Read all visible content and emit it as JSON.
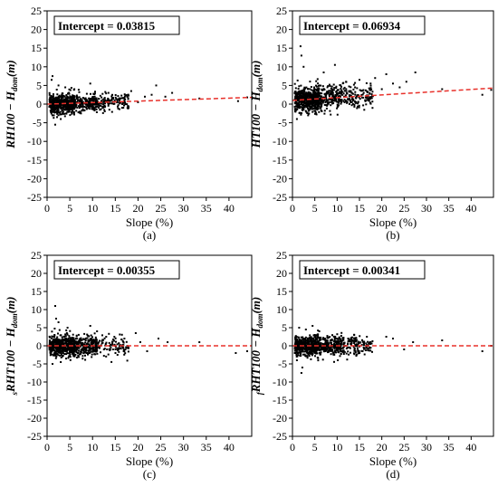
{
  "chart_data": [
    {
      "type": "scatter",
      "caption": "(a)",
      "annotation": "Intercept = 0.03815",
      "ylabel": {
        "prefix": "",
        "main": "RH100 − H",
        "sub": "dom",
        "suffix": "(m)"
      },
      "xlabel": "Slope (%)",
      "xlim": [
        0,
        45
      ],
      "ylim": [
        -25,
        25
      ],
      "xticks": [
        0,
        5,
        10,
        15,
        20,
        25,
        30,
        35,
        40
      ],
      "yticks": [
        -25,
        -20,
        -15,
        -10,
        -5,
        0,
        5,
        10,
        15,
        20,
        25
      ],
      "grid": false,
      "trend_line": {
        "style": "dashed",
        "color": "#e8302a",
        "x": [
          0,
          45
        ],
        "y": [
          0.0,
          1.8
        ]
      },
      "cloud": {
        "spread": 1.2,
        "slope": 0.04,
        "seed": 11
      },
      "series": [
        {
          "x": [
            1.0,
            1.2,
            2.5,
            4.0,
            1.5,
            1.8,
            3.0,
            6.0,
            9.5,
            2.2,
            17.0,
            18.5,
            20.0,
            21.5,
            23.0,
            24.0,
            26.0,
            27.5,
            33.5,
            42.0,
            44.0,
            13.5,
            16.5
          ],
          "y": [
            6.5,
            7.5,
            5.0,
            4.5,
            -3.0,
            -5.5,
            -4.0,
            4.0,
            5.5,
            -3.5,
            1.5,
            3.5,
            0.5,
            2.0,
            2.5,
            5.0,
            2.0,
            3.0,
            1.5,
            0.8,
            1.8,
            3.0,
            -1.0
          ]
        }
      ]
    },
    {
      "type": "scatter",
      "caption": "(b)",
      "annotation": "Intercept = 0.06934",
      "ylabel": {
        "prefix": "",
        "main": "HT100 − H",
        "sub": "dom",
        "suffix": "(m)"
      },
      "xlabel": "Slope (%)",
      "xlim": [
        0,
        45
      ],
      "ylim": [
        -25,
        25
      ],
      "xticks": [
        0,
        5,
        10,
        15,
        20,
        25,
        30,
        35,
        40
      ],
      "yticks": [
        -25,
        -20,
        -15,
        -10,
        -5,
        0,
        5,
        10,
        15,
        20,
        25
      ],
      "grid": false,
      "trend_line": {
        "style": "dashed",
        "color": "#e8302a",
        "x": [
          0,
          45
        ],
        "y": [
          1.0,
          4.3
        ]
      },
      "cloud": {
        "spread": 1.6,
        "slope": 0.07,
        "seed": 23
      },
      "series": [
        {
          "x": [
            1.8,
            2.0,
            2.5,
            9.5,
            7.0,
            1.0,
            3.5,
            15.0,
            17.5,
            18.5,
            20.0,
            21.0,
            22.5,
            24.0,
            25.5,
            27.5,
            33.5,
            42.5,
            44.5,
            12.0,
            14.0
          ],
          "y": [
            15.5,
            13.0,
            10.0,
            10.5,
            8.5,
            -4.0,
            -3.0,
            6.5,
            5.5,
            7.0,
            4.0,
            8.0,
            5.5,
            4.5,
            6.0,
            8.5,
            4.0,
            2.5,
            3.8,
            6.0,
            4.5
          ]
        }
      ]
    },
    {
      "type": "scatter",
      "caption": "(c)",
      "annotation": "Intercept = 0.00355",
      "ylabel": {
        "prefix": "s",
        "main": "RHT100 − H",
        "sub": "dom",
        "suffix": "(m)"
      },
      "xlabel": "Slope (%)",
      "xlim": [
        0,
        45
      ],
      "ylim": [
        -25,
        25
      ],
      "xticks": [
        0,
        5,
        10,
        15,
        20,
        25,
        30,
        35,
        40
      ],
      "yticks": [
        -25,
        -20,
        -15,
        -10,
        -5,
        0,
        5,
        10,
        15,
        20,
        25
      ],
      "grid": false,
      "trend_line": {
        "style": "dashed",
        "color": "#e8302a",
        "x": [
          0,
          45
        ],
        "y": [
          0.0,
          0.0
        ]
      },
      "cloud": {
        "spread": 1.4,
        "slope": 0.0,
        "seed": 37
      },
      "series": [
        {
          "x": [
            1.8,
            2.0,
            2.5,
            1.2,
            3.0,
            4.5,
            9.5,
            11.0,
            17.0,
            19.5,
            20.5,
            22.0,
            24.5,
            26.5,
            33.5,
            41.5,
            44.0,
            13.0,
            15.5
          ],
          "y": [
            11.0,
            7.5,
            6.5,
            -5.0,
            -4.5,
            5.0,
            5.5,
            4.0,
            2.0,
            3.5,
            1.0,
            -1.5,
            2.0,
            1.0,
            1.0,
            -2.0,
            -1.5,
            2.5,
            -2.5
          ]
        }
      ]
    },
    {
      "type": "scatter",
      "caption": "(d)",
      "annotation": "Intercept = 0.00341",
      "ylabel": {
        "prefix": "f",
        "main": "RHT100 − H",
        "sub": "dom",
        "suffix": "(m)"
      },
      "xlabel": "Slope (%)",
      "xlim": [
        0,
        45
      ],
      "ylim": [
        -25,
        25
      ],
      "xticks": [
        0,
        5,
        10,
        15,
        20,
        25,
        30,
        35,
        40
      ],
      "yticks": [
        -25,
        -20,
        -15,
        -10,
        -5,
        0,
        5,
        10,
        15,
        20,
        25
      ],
      "grid": false,
      "trend_line": {
        "style": "dashed",
        "color": "#e8302a",
        "x": [
          0,
          45
        ],
        "y": [
          0.0,
          0.0
        ]
      },
      "cloud": {
        "spread": 1.3,
        "slope": 0.0,
        "seed": 53
      },
      "series": [
        {
          "x": [
            2.0,
            2.2,
            1.5,
            3.0,
            1.0,
            4.5,
            6.0,
            9.5,
            12.5,
            17.5,
            21.0,
            22.5,
            25.0,
            27.0,
            33.5,
            42.5,
            44.5,
            15.0
          ],
          "y": [
            -7.5,
            -6.0,
            5.0,
            4.5,
            -4.0,
            5.5,
            4.0,
            2.5,
            2.0,
            1.0,
            2.5,
            2.0,
            -1.0,
            1.0,
            1.5,
            -1.5,
            0.0,
            -2.0
          ]
        }
      ]
    }
  ]
}
